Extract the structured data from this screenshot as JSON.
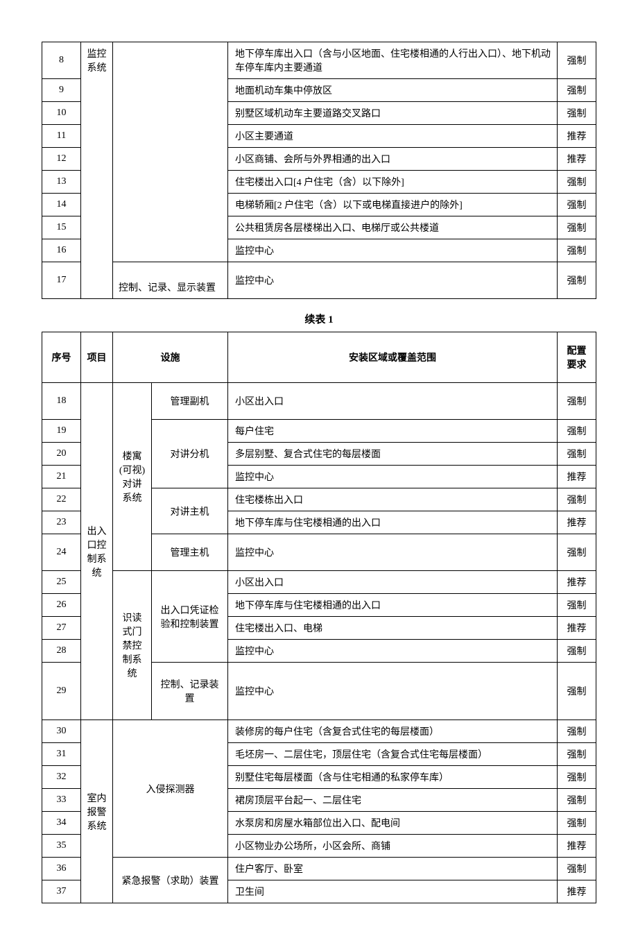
{
  "table1": {
    "rows": [
      {
        "seq": "8",
        "proj": "监控系统",
        "fac": "",
        "area": "地下停车库出入口（含与小区地面、住宅楼相通的人行出入口）、地下机动车停车库内主要通道",
        "req": "强制"
      },
      {
        "seq": "9",
        "proj": "",
        "fac": "",
        "area": "地面机动车集中停放区",
        "req": "强制"
      },
      {
        "seq": "10",
        "proj": "",
        "fac": "",
        "area": "别墅区域机动车主要道路交叉路口",
        "req": "强制"
      },
      {
        "seq": "11",
        "proj": "",
        "fac": "",
        "area": "小区主要通道",
        "req": "推荐"
      },
      {
        "seq": "12",
        "proj": "",
        "fac": "",
        "area": "小区商铺、会所与外界相通的出入口",
        "req": "推荐"
      },
      {
        "seq": "13",
        "proj": "",
        "fac": "",
        "area": "住宅楼出入口[4 户住宅（含）以下除外]",
        "req": "强制"
      },
      {
        "seq": "14",
        "proj": "",
        "fac": "",
        "area": "电梯轿厢[2 户住宅（含）以下或电梯直接进户的除外]",
        "req": "强制"
      },
      {
        "seq": "15",
        "proj": "",
        "fac": "",
        "area": "公共租赁房各层楼梯出入口、电梯厅或公共楼道",
        "req": "强制"
      },
      {
        "seq": "16",
        "proj": "",
        "fac": "",
        "area": "监控中心",
        "req": "强制"
      },
      {
        "seq": "17",
        "proj": "",
        "fac": "控制、记录、显示装置",
        "area": "监控中心",
        "req": "强制"
      }
    ]
  },
  "caption": "续表 1",
  "table2": {
    "headers": {
      "seq": "序号",
      "proj": "项目",
      "fac": "设施",
      "area": "安装区域或覆盖范围",
      "req": "配置要求"
    },
    "proj_groups": [
      {
        "label": "出入口控制系统",
        "rowspan": 12
      },
      {
        "label": "室内报警系统",
        "rowspan": 8
      }
    ],
    "fac1_groups": [
      {
        "label": "楼寓(可视)对讲系统",
        "rowspan": 7
      },
      {
        "label": "识读式门禁控制系统",
        "rowspan": 5
      }
    ],
    "fac2_groups": [
      {
        "label": "管理副机",
        "rowspan": 1
      },
      {
        "label": "对讲分机",
        "rowspan": 3
      },
      {
        "label": "对讲主机",
        "rowspan": 2
      },
      {
        "label": "管理主机",
        "rowspan": 1
      },
      {
        "label": "出入口凭证检验和控制装置",
        "rowspan": 4
      },
      {
        "label": "控制、记录装置",
        "rowspan": 1
      }
    ],
    "fac_full_groups": [
      {
        "label": "入侵探测器",
        "rowspan": 6
      },
      {
        "label": "紧急报警（求助）装置",
        "rowspan": 2
      }
    ],
    "rows": [
      {
        "seq": "18",
        "area": "小区出入口",
        "req": "强制"
      },
      {
        "seq": "19",
        "area": "每户住宅",
        "req": "强制"
      },
      {
        "seq": "20",
        "area": "多层别墅、复合式住宅的每层楼面",
        "req": "强制"
      },
      {
        "seq": "21",
        "area": "监控中心",
        "req": "推荐"
      },
      {
        "seq": "22",
        "area": "住宅楼栋出入口",
        "req": "强制"
      },
      {
        "seq": "23",
        "area": "地下停车库与住宅楼相通的出入口",
        "req": "推荐"
      },
      {
        "seq": "24",
        "area": "监控中心",
        "req": "强制"
      },
      {
        "seq": "25",
        "area": "小区出入口",
        "req": "推荐"
      },
      {
        "seq": "26",
        "area": "地下停车库与住宅楼相通的出入口",
        "req": "强制"
      },
      {
        "seq": "27",
        "area": "住宅楼出入口、电梯",
        "req": "推荐"
      },
      {
        "seq": "28",
        "area": "监控中心",
        "req": "强制"
      },
      {
        "seq": "29",
        "area": "监控中心",
        "req": "强制"
      },
      {
        "seq": "30",
        "area": "装修房的每户住宅（含复合式住宅的每层楼面）",
        "req": "强制"
      },
      {
        "seq": "31",
        "area": "毛坯房一、二层住宅，顶层住宅（含复合式住宅每层楼面）",
        "req": "强制"
      },
      {
        "seq": "32",
        "area": "别墅住宅每层楼面（含与住宅相通的私家停车库）",
        "req": "强制"
      },
      {
        "seq": "33",
        "area": "裙房顶层平台起一、二层住宅",
        "req": "强制"
      },
      {
        "seq": "34",
        "area": "水泵房和房屋水箱部位出入口、配电间",
        "req": "强制"
      },
      {
        "seq": "35",
        "area": "小区物业办公场所，小区会所、商铺",
        "req": "推荐"
      },
      {
        "seq": "36",
        "area": "住户客厅、卧室",
        "req": "强制"
      },
      {
        "seq": "37",
        "area": "卫生间",
        "req": "推荐"
      }
    ]
  }
}
